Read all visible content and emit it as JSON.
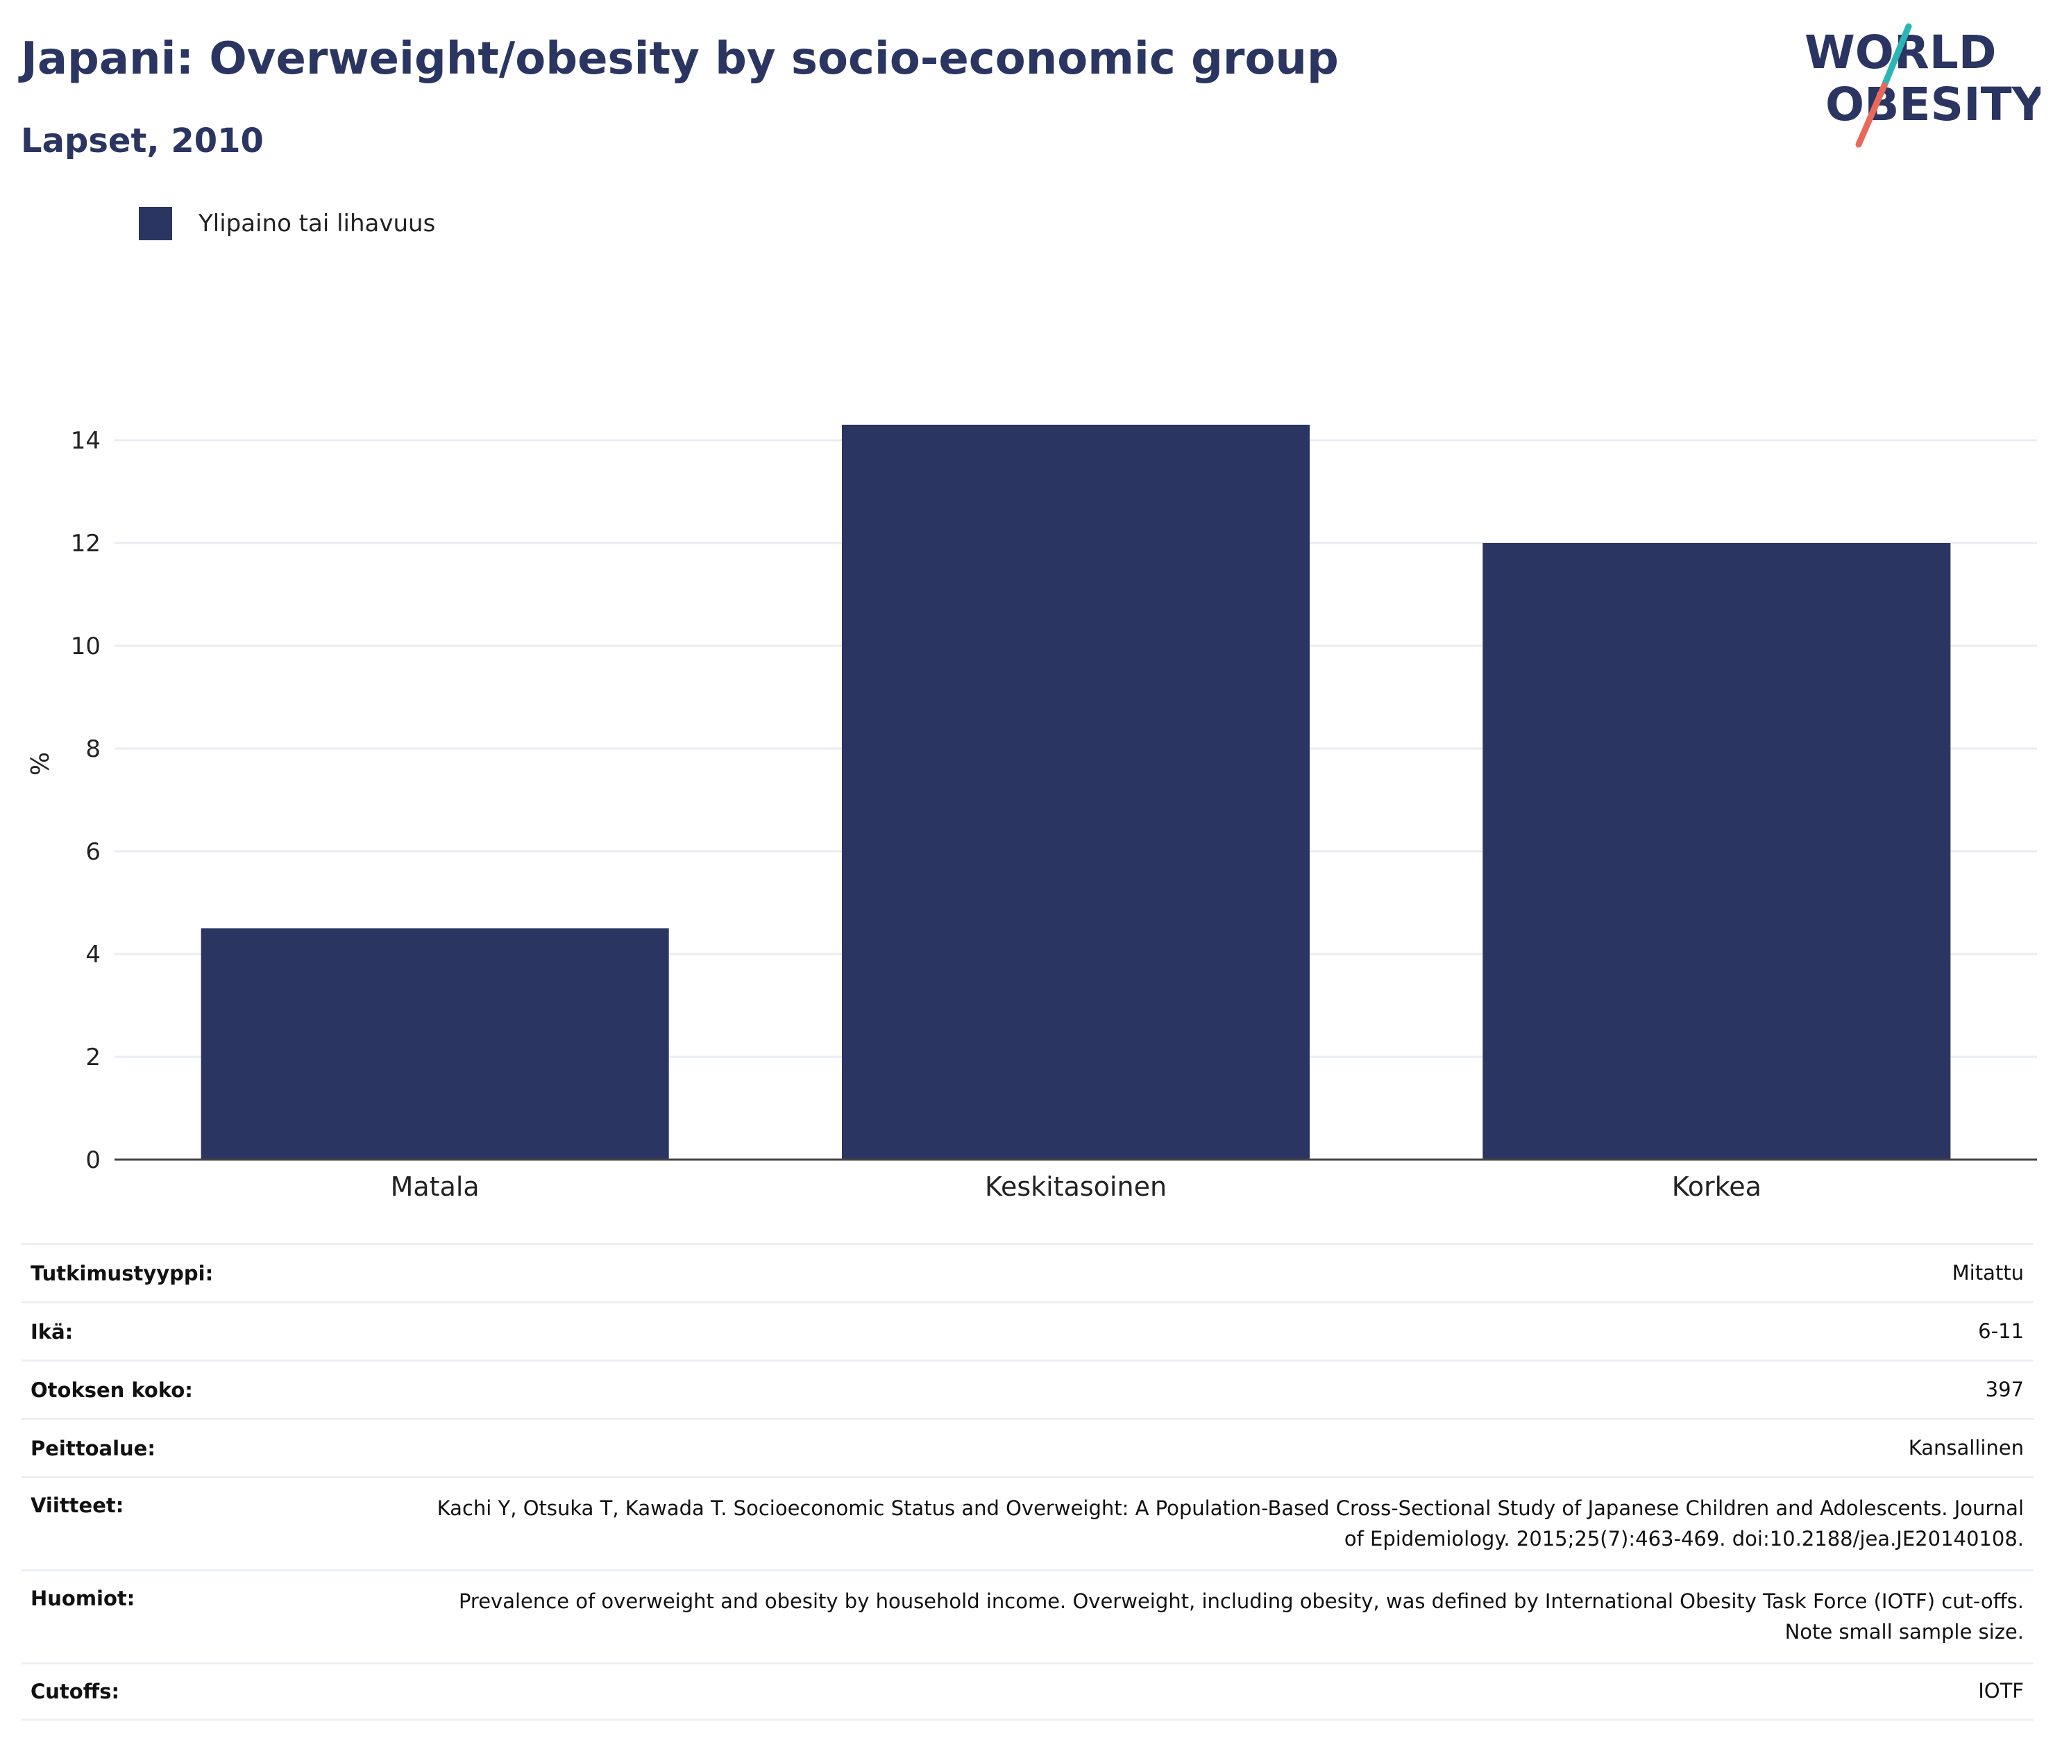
{
  "header": {
    "title": "Japani: Overweight/obesity by socio-economic group",
    "subtitle": "Lapset, 2010",
    "logo_line1": "WORLD",
    "logo_line2": "OBESITY"
  },
  "colors": {
    "bar": "#2b3561",
    "title": "#2b3561",
    "grid": "#e9ecf2",
    "axis": "#444444",
    "logo_slash_top": "#2bb5b5",
    "logo_slash_bottom": "#e8685a"
  },
  "chart_data": {
    "type": "bar",
    "categories": [
      "Matala",
      "Keskitasoinen",
      "Korkea"
    ],
    "series": [
      {
        "name": "Ylipaino tai lihavuus",
        "values": [
          4.5,
          14.3,
          12.0
        ]
      }
    ],
    "ylabel": "%",
    "xlabel": "",
    "ylim": [
      0,
      15
    ],
    "yticks": [
      0,
      2,
      4,
      6,
      8,
      10,
      12,
      14
    ],
    "grid": true,
    "legend_position": "top-left"
  },
  "meta": [
    {
      "label": "Tutkimustyyppi:",
      "value": "Mitattu"
    },
    {
      "label": "Ikä:",
      "value": "6-11"
    },
    {
      "label": "Otoksen koko:",
      "value": "397"
    },
    {
      "label": "Peittoalue:",
      "value": "Kansallinen"
    },
    {
      "label": "Viitteet:",
      "value": "Kachi Y, Otsuka T, Kawada T. Socioeconomic Status and Overweight: A Population-Based Cross-Sectional Study of Japanese Children and Adolescents. Journal of Epidemiology. 2015;25(7):463-469. doi:10.2188/jea.JE20140108."
    },
    {
      "label": "Huomiot:",
      "value": "Prevalence of overweight and obesity by household income. Overweight, including obesity, was defined by International Obesity Task Force (IOTF) cut-offs. Note small sample size."
    },
    {
      "label": "Cutoffs:",
      "value": "IOTF"
    }
  ]
}
